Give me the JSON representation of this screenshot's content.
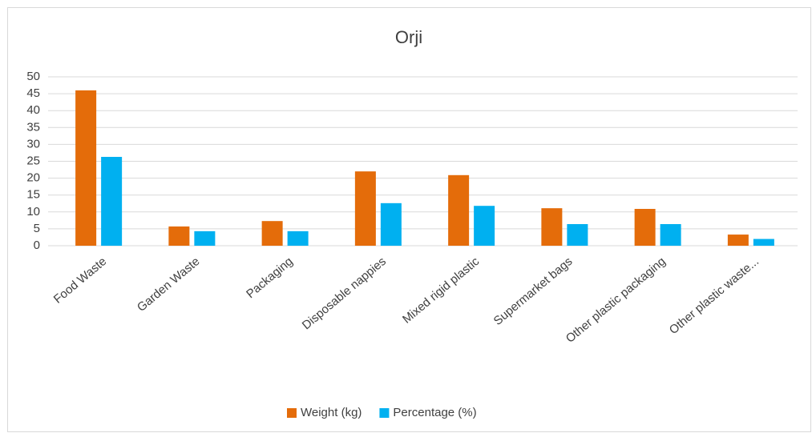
{
  "chart_data": {
    "type": "bar",
    "title": "Orji",
    "categories": [
      "Food Waste",
      "Garden Waste",
      "Packaging",
      "Disposable nappies",
      "Mixed rigid plastic",
      "Supermarket bags",
      "Other plastic packaging",
      "Other plastic waste..."
    ],
    "series": [
      {
        "name": "Weight (kg)",
        "color": "#e46c0a",
        "values": [
          46,
          5.7,
          7.3,
          22,
          20.9,
          11.1,
          10.9,
          3.3
        ]
      },
      {
        "name": "Percentage (%)",
        "color": "#00b0f0",
        "values": [
          26.3,
          4.3,
          4.3,
          12.6,
          11.8,
          6.4,
          6.4,
          2
        ]
      }
    ],
    "ylim": [
      0,
      50
    ],
    "yticks": [
      0,
      5,
      10,
      15,
      20,
      25,
      30,
      35,
      40,
      45,
      50
    ],
    "grid": true,
    "legend": "bottom"
  }
}
